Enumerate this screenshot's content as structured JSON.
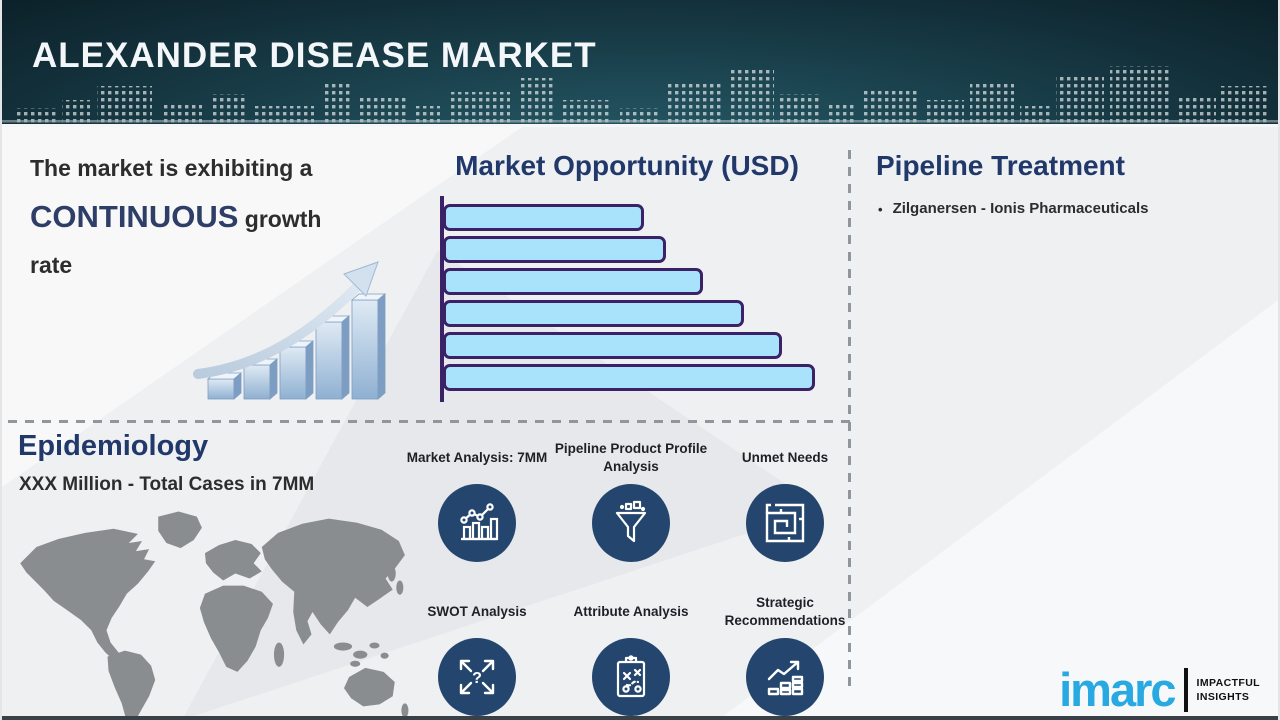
{
  "header": {
    "title": "ALEXANDER DISEASE MARKET"
  },
  "growth": {
    "text_before": "The market is exhibiting a ",
    "highlight": "CONTINUOUS",
    "text_after": " growth rate"
  },
  "market_opportunity": {
    "title": "Market Opportunity (USD)"
  },
  "chart_data": {
    "type": "bar",
    "orientation": "horizontal",
    "title": "Market Opportunity (USD)",
    "categories": [
      "",
      "",
      "",
      "",
      "",
      ""
    ],
    "values": [
      54,
      60,
      70,
      81,
      91,
      100
    ],
    "value_note": "relative bar lengths, percent of longest bar; no numeric axis labels shown",
    "xlabel": "",
    "ylabel": "",
    "bar_fill": "#a9e2fb",
    "bar_border": "#3b2166",
    "grid": false,
    "legend": false
  },
  "pipeline": {
    "title": "Pipeline Treatment",
    "bullet": "•",
    "items": [
      "Zilganersen - Ionis Pharmaceuticals"
    ]
  },
  "epidemiology": {
    "title": "Epidemiology",
    "subtitle": "XXX Million - Total Cases in 7MM"
  },
  "features": [
    {
      "label": "Market Analysis: 7MM",
      "icon": "bar-chart-trend-icon"
    },
    {
      "label": "Pipeline Product Profile Analysis",
      "icon": "funnel-icon"
    },
    {
      "label": "Unmet Needs",
      "icon": "maze-icon"
    },
    {
      "label": "SWOT Analysis",
      "icon": "four-arrows-question-icon"
    },
    {
      "label": "Attribute Analysis",
      "icon": "clipboard-strategy-icon"
    },
    {
      "label": "Strategic Recommendations",
      "icon": "growth-arrow-bars-icon"
    }
  ],
  "logo": {
    "name": "imarc",
    "tagline_line1": "IMPACTFUL",
    "tagline_line2": "INSIGHTS"
  },
  "colors": {
    "header_bg": "#16333d",
    "heading_navy": "#21386b",
    "highlight_navy": "#2e3e67",
    "body_text": "#2d2d2d",
    "bar_fill": "#a9e2fb",
    "bar_border": "#3b2166",
    "icon_circle": "#24466e",
    "map_gray": "#8a8d90",
    "logo_blue": "#29a9e1"
  }
}
